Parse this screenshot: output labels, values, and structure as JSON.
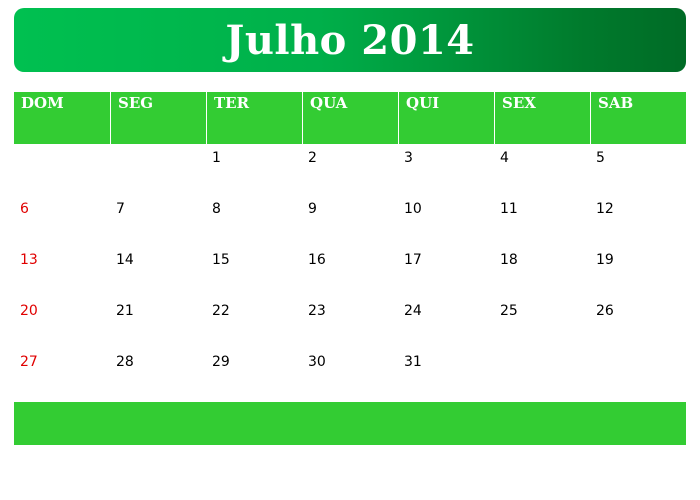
{
  "title": "Julho 2014",
  "colors": {
    "header_green": "#33cc33",
    "title_green_start": "#00c050",
    "title_green_end": "#006b26",
    "sunday_red": "#e00000"
  },
  "weekdays": [
    "DOM",
    "SEG",
    "TER",
    "QUA",
    "QUI",
    "SEX",
    "SAB"
  ],
  "weeks": [
    [
      "",
      "",
      "1",
      "2",
      "3",
      "4",
      "5"
    ],
    [
      "6",
      "7",
      "8",
      "9",
      "10",
      "11",
      "12"
    ],
    [
      "13",
      "14",
      "15",
      "16",
      "17",
      "18",
      "19"
    ],
    [
      "20",
      "21",
      "22",
      "23",
      "24",
      "25",
      "26"
    ],
    [
      "27",
      "28",
      "29",
      "30",
      "31",
      "",
      ""
    ]
  ]
}
